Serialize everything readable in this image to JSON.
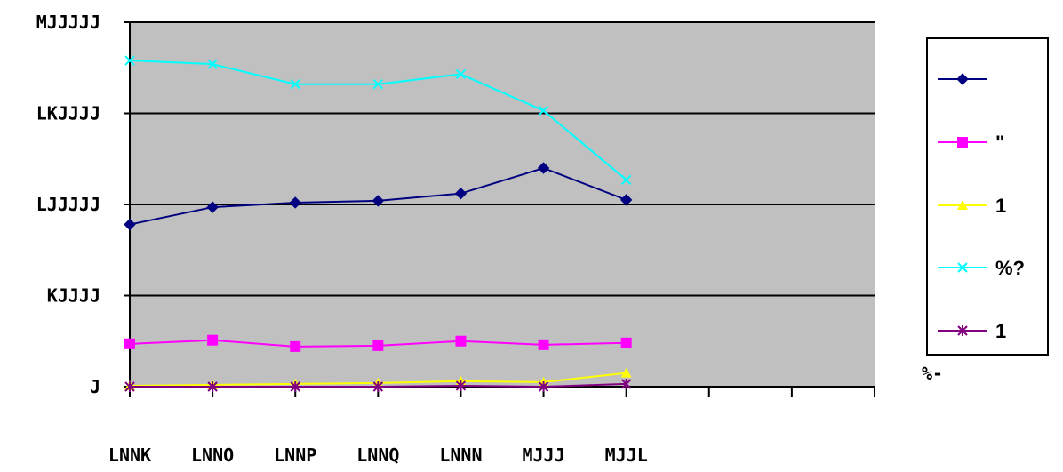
{
  "chart_data": {
    "type": "line",
    "categories": [
      "LNNK",
      "LNNO",
      "LNNP",
      "LNNQ",
      "LNNN",
      "MJJJ",
      "MJJL"
    ],
    "y_ticks": [
      "J",
      "KJJJJ",
      "LJJJJJ",
      "LKJJJJ",
      "MJJJJJ"
    ],
    "ylim": [
      0,
      400000
    ],
    "grid": true,
    "legend_position": "right",
    "plot_background": "#c0c0c0",
    "stray_label": "%-",
    "series": [
      {
        "name": "",
        "color": "#000080",
        "marker": "diamond",
        "values": [
          178000,
          197000,
          202000,
          204000,
          212000,
          240000,
          205000
        ]
      },
      {
        "name": "\"",
        "color": "#ff00ff",
        "marker": "square",
        "values": [
          47000,
          51000,
          44000,
          45000,
          50000,
          46000,
          48000
        ]
      },
      {
        "name": "1",
        "color": "#ffff00",
        "marker": "triangle",
        "values": [
          1000,
          2000,
          3000,
          4000,
          6000,
          5000,
          15000
        ]
      },
      {
        "name": "%?",
        "color": "#00ffff",
        "marker": "x",
        "values": [
          358000,
          354000,
          332000,
          332000,
          343000,
          303000,
          227000
        ]
      },
      {
        "name": "1",
        "color": "#800080",
        "marker": "star",
        "values": [
          0,
          0,
          0,
          0,
          1000,
          0,
          3000
        ]
      }
    ]
  }
}
